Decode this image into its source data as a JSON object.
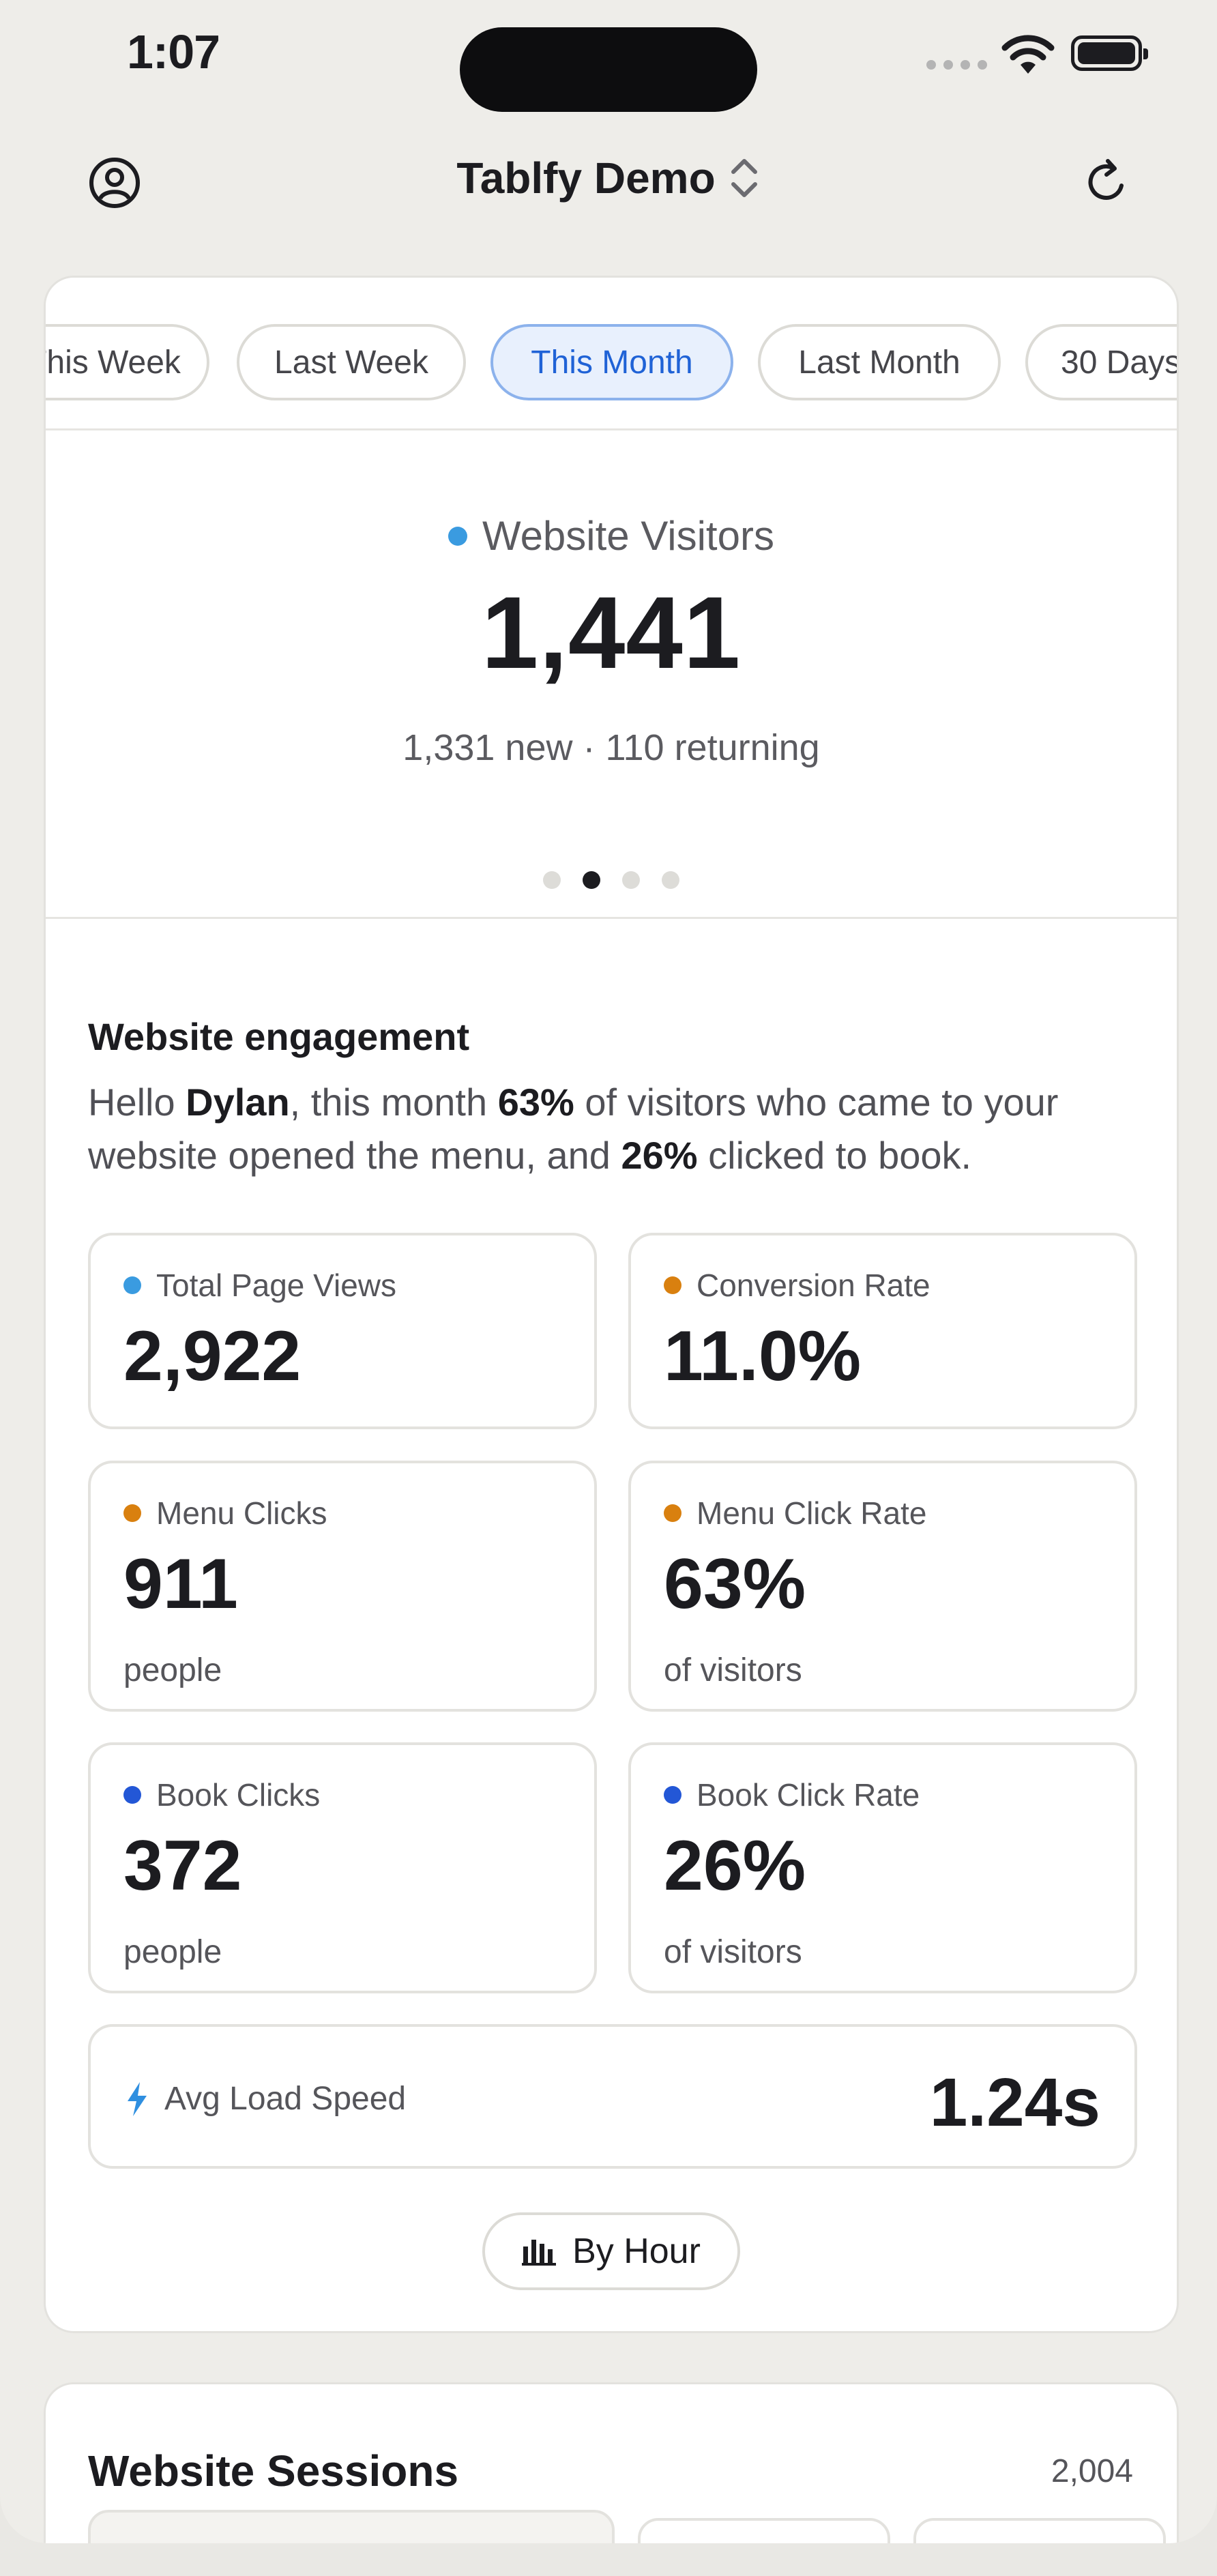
{
  "status_bar": {
    "time": "1:07"
  },
  "nav": {
    "title": "Tablfy Demo"
  },
  "date_range": {
    "chips": [
      {
        "label": "This Week",
        "active": false
      },
      {
        "label": "Last Week",
        "active": false
      },
      {
        "label": "This Month",
        "active": true
      },
      {
        "label": "Last Month",
        "active": false
      },
      {
        "label": "30 Days",
        "active": false
      }
    ]
  },
  "visitors": {
    "label": "Website Visitors",
    "value": "1,441",
    "breakdown": "1,331 new · 110 returning",
    "page_index": 2,
    "page_count": 4
  },
  "engagement": {
    "title": "Website engagement",
    "greeting": "Hello ",
    "name": "Dylan",
    "part2": ", this month ",
    "menu_pct": "63%",
    "part3": " of visitors who came to your website opened the menu, and ",
    "book_pct": "26%",
    "part4": " clicked to book."
  },
  "stats": [
    {
      "label": "Total Page Views",
      "value": "2,922",
      "unit": "",
      "color": "#3a9be0"
    },
    {
      "label": "Conversion Rate",
      "value": "11.0%",
      "unit": "",
      "color": "#d9800f"
    },
    {
      "label": "Menu Clicks",
      "value": "911",
      "unit": "people",
      "color": "#d9800f"
    },
    {
      "label": "Menu Click Rate",
      "value": "63%",
      "unit": "of visitors",
      "color": "#d9800f"
    },
    {
      "label": "Book Clicks",
      "value": "372",
      "unit": "people",
      "color": "#2357d6"
    },
    {
      "label": "Book Click Rate",
      "value": "26%",
      "unit": "of visitors",
      "color": "#2357d6"
    }
  ],
  "speed": {
    "label": "Avg Load Speed",
    "value": "1.24s",
    "color": "#2f8fe0"
  },
  "byhour": {
    "label": "By Hour"
  },
  "sessions": {
    "title": "Website Sessions",
    "count": "2,004"
  },
  "colors": {
    "accent": "#1f62d6",
    "visitor_dot": "#3a9be0"
  }
}
